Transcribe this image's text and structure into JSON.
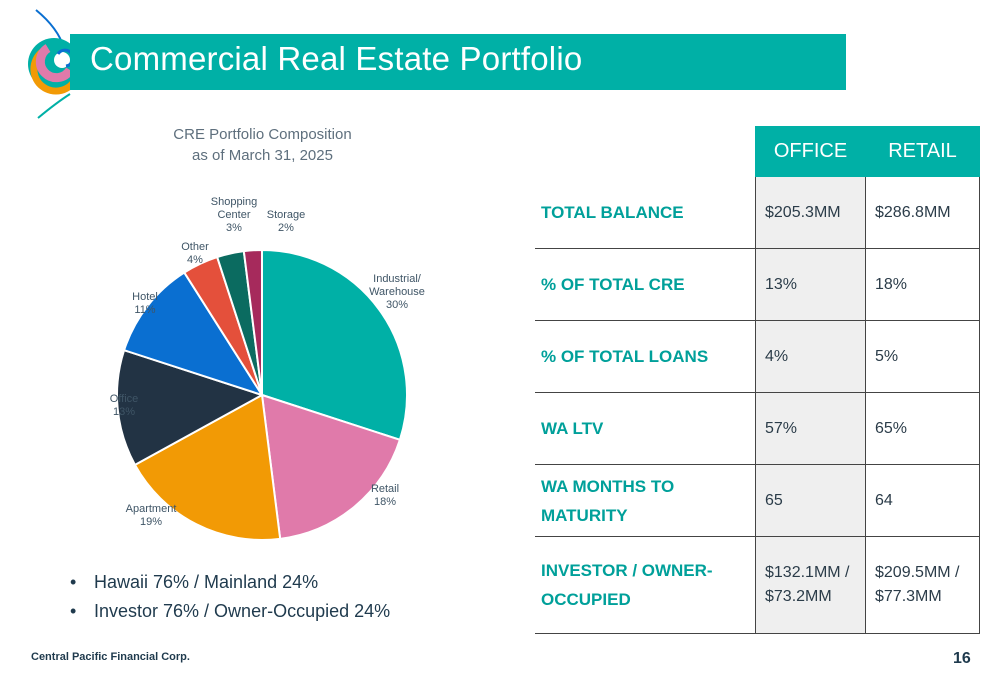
{
  "header": {
    "title": "Commercial Real Estate Portfolio"
  },
  "chart_data": {
    "type": "pie",
    "title": "CRE Portfolio Composition",
    "subtitle": "as of March 31, 2025",
    "slices": [
      {
        "name": "Industrial/ Warehouse",
        "value": 30,
        "label": "30%",
        "color": "#00b0a6"
      },
      {
        "name": "Retail",
        "value": 18,
        "label": "18%",
        "color": "#e07aaa"
      },
      {
        "name": "Apartment",
        "value": 19,
        "label": "19%",
        "color": "#f29a05"
      },
      {
        "name": "Office",
        "value": 13,
        "label": "13%",
        "color": "#223344"
      },
      {
        "name": "Hotel",
        "value": 11,
        "label": "11%",
        "color": "#0a6fd1"
      },
      {
        "name": "Other",
        "value": 4,
        "label": "4%",
        "color": "#e4503b"
      },
      {
        "name": "Shopping Center",
        "value": 3,
        "label": "3%",
        "color": "#0b6b60"
      },
      {
        "name": "Storage",
        "value": 2,
        "label": "2%",
        "color": "#a62a5c"
      }
    ]
  },
  "bullets": [
    "Hawaii 76% / Mainland 24%",
    "Investor 76% / Owner-Occupied 24%"
  ],
  "table": {
    "columns": [
      "OFFICE",
      "RETAIL"
    ],
    "rows": [
      {
        "label": "TOTAL BALANCE",
        "office": "$205.3MM",
        "retail": "$286.8MM"
      },
      {
        "label": "% OF TOTAL CRE",
        "office": "13%",
        "retail": "18%"
      },
      {
        "label": "% OF TOTAL LOANS",
        "office": "4%",
        "retail": "5%"
      },
      {
        "label": "WA LTV",
        "office": "57%",
        "retail": "65%"
      },
      {
        "label": "WA MONTHS TO MATURITY",
        "office": "65",
        "retail": "64"
      },
      {
        "label": "INVESTOR / OWNER-OCCUPIED",
        "office": "$132.1MM / $73.2MM",
        "retail": "$209.5MM / $77.3MM"
      }
    ]
  },
  "footer": {
    "company": "Central Pacific Financial Corp.",
    "page": "16"
  }
}
